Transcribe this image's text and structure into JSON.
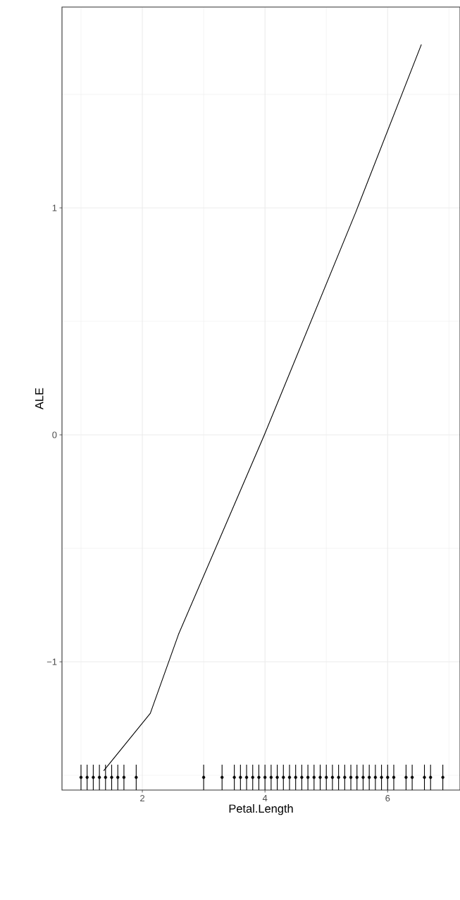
{
  "chart_data": {
    "type": "line",
    "xlabel": "Petal.Length",
    "ylabel": "ALE",
    "xlim": [
      0.69,
      7.18
    ],
    "ylim": [
      -1.565,
      1.885
    ],
    "xticks": [
      {
        "value": 1,
        "label": null
      },
      2,
      {
        "value": 3,
        "label": null
      },
      4,
      {
        "value": 5,
        "label": null
      },
      6,
      {
        "value": 7,
        "label": null
      }
    ],
    "yticks": [
      {
        "value": -1.5,
        "label": null
      },
      {
        "value": -1,
        "label": "−1"
      },
      {
        "value": -0.5,
        "label": null
      },
      0,
      {
        "value": 0.5,
        "label": null
      },
      1,
      {
        "value": 1.5,
        "label": null
      }
    ],
    "grid": true,
    "series": [
      {
        "color": "#000000",
        "x": [
          1.37,
          2.13,
          2.59,
          3.99,
          5.48,
          6.55
        ],
        "values": [
          -1.48,
          -1.227,
          -0.879,
          0,
          0.981,
          1.72
        ]
      },
      {
        "type": "scatter",
        "color": "#000000",
        "x": [
          1.0,
          1.1,
          1.2,
          1.3,
          1.4,
          1.5,
          1.6,
          1.7,
          1.9,
          3.0,
          3.3,
          3.5,
          3.6,
          3.7,
          3.8,
          3.9,
          4.0,
          4.1,
          4.2,
          4.3,
          4.4,
          4.5,
          4.6,
          4.7,
          4.8,
          4.9,
          5.0,
          5.1,
          5.2,
          5.3,
          5.4,
          5.5,
          5.6,
          5.7,
          5.8,
          5.9,
          6.0,
          6.1,
          6.3,
          6.4,
          6.6,
          6.7,
          6.9
        ],
        "values": [
          -1.509,
          -1.509,
          -1.509,
          -1.509,
          -1.509,
          -1.509,
          -1.509,
          -1.509,
          -1.509,
          -1.509,
          -1.509,
          -1.509,
          -1.509,
          -1.509,
          -1.509,
          -1.509,
          -1.509,
          -1.509,
          -1.509,
          -1.509,
          -1.509,
          -1.509,
          -1.509,
          -1.509,
          -1.509,
          -1.509,
          -1.509,
          -1.509,
          -1.509,
          -1.509,
          -1.509,
          -1.509,
          -1.509,
          -1.509,
          -1.509,
          -1.509,
          -1.509,
          -1.509,
          -1.509,
          -1.509,
          -1.509,
          -1.509,
          -1.509
        ],
        "errors": [
          0.056,
          0.056,
          0.056,
          0.056,
          0.056,
          0.056,
          0.056,
          0.056,
          0.056,
          0.056,
          0.056,
          0.056,
          0.056,
          0.056,
          0.056,
          0.056,
          0.056,
          0.056,
          0.056,
          0.056,
          0.056,
          0.056,
          0.056,
          0.056,
          0.056,
          0.056,
          0.056,
          0.056,
          0.056,
          0.056,
          0.056,
          0.056,
          0.056,
          0.056,
          0.056,
          0.056,
          0.056,
          0.056,
          0.056,
          0.056,
          0.056,
          0.056,
          0.056
        ]
      }
    ]
  }
}
